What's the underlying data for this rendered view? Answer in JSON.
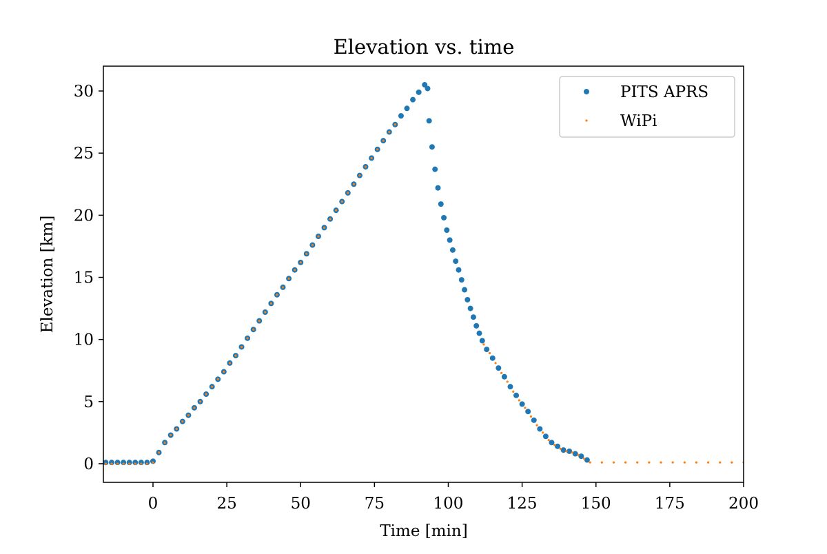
{
  "chart_data": {
    "type": "scatter",
    "title": "Elevation vs. time",
    "x_label": "Time [min]",
    "y_label": "Elevation [km]",
    "xlim": [
      -16.8,
      200
    ],
    "ylim": [
      -1.5,
      32
    ],
    "xticks": [
      0,
      25,
      50,
      75,
      100,
      125,
      150,
      175,
      200
    ],
    "yticks": [
      0,
      5,
      10,
      15,
      20,
      25,
      30
    ],
    "legend": "upper right",
    "series": [
      {
        "name": "PITS APRS",
        "color": "#1f77b4",
        "marker_size": 4,
        "x": [
          -16,
          -14,
          -12,
          -10,
          -8,
          -6,
          -4,
          -2,
          0,
          2,
          4,
          6,
          8,
          10,
          12,
          14,
          16,
          18,
          20,
          22,
          24,
          26,
          28,
          30,
          32,
          34,
          36,
          38,
          40,
          42,
          44,
          46,
          48,
          50,
          52,
          54,
          56,
          58,
          60,
          62,
          64,
          66,
          68,
          70,
          72,
          74,
          76,
          78,
          80,
          82,
          84,
          86,
          88,
          90,
          92,
          93,
          93.5,
          94.5,
          95.5,
          96.5,
          97.5,
          98.5,
          99.5,
          100.5,
          101.5,
          102.5,
          103.5,
          104.5,
          105.5,
          106.5,
          107.5,
          108.5,
          109.5,
          110.5,
          111.5,
          113,
          115,
          117,
          119,
          121,
          123,
          125,
          127,
          129,
          131,
          133,
          135,
          137,
          139,
          141,
          143,
          145,
          147
        ],
        "values": [
          0.1,
          0.1,
          0.1,
          0.1,
          0.1,
          0.1,
          0.1,
          0.1,
          0.2,
          0.9,
          1.7,
          2.3,
          2.8,
          3.4,
          3.9,
          4.5,
          5.0,
          5.6,
          6.2,
          6.8,
          7.4,
          8.1,
          8.7,
          9.4,
          10.1,
          10.8,
          11.5,
          12.2,
          12.9,
          13.6,
          14.2,
          14.9,
          15.6,
          16.2,
          16.9,
          17.6,
          18.3,
          19.0,
          19.7,
          20.4,
          21.1,
          21.8,
          22.5,
          23.2,
          23.9,
          24.6,
          25.3,
          26.0,
          26.7,
          27.3,
          28.0,
          28.6,
          29.3,
          29.9,
          30.5,
          30.2,
          27.6,
          25.5,
          23.7,
          22.2,
          20.9,
          19.8,
          18.8,
          18.0,
          17.2,
          16.3,
          15.6,
          14.8,
          14.0,
          13.2,
          12.5,
          11.8,
          11.1,
          10.5,
          9.9,
          9.2,
          8.5,
          7.7,
          7.0,
          6.2,
          5.5,
          4.8,
          4.2,
          3.5,
          2.8,
          2.2,
          1.7,
          1.4,
          1.1,
          1.0,
          0.8,
          0.6,
          0.3
        ]
      },
      {
        "name": "WiPi",
        "color": "#ff7f0e",
        "marker_size": 1.6,
        "x": [
          -16,
          -14,
          -12,
          -10,
          -8,
          -6,
          -4,
          -2,
          0,
          2,
          4,
          6,
          8,
          10,
          12,
          14,
          16,
          18,
          20,
          22,
          24,
          26,
          28,
          30,
          32,
          34,
          36,
          38,
          40,
          42,
          44,
          46,
          48,
          50,
          52,
          54,
          56,
          58,
          60,
          62,
          64,
          66,
          68,
          70,
          72,
          74,
          76,
          78,
          80,
          82,
          112,
          114,
          116,
          118,
          120,
          122,
          124,
          126,
          128,
          130,
          132,
          134,
          136,
          138,
          140,
          142,
          144,
          146,
          148,
          152,
          156,
          160,
          164,
          168,
          172,
          176,
          180,
          184,
          188,
          192,
          196,
          200
        ],
        "values": [
          0.0,
          0.0,
          0.0,
          0.0,
          0.0,
          0.0,
          0.0,
          0.0,
          0.1,
          0.9,
          1.7,
          2.3,
          2.8,
          3.4,
          3.9,
          4.5,
          5.0,
          5.6,
          6.2,
          6.8,
          7.4,
          8.1,
          8.7,
          9.4,
          10.1,
          10.8,
          11.5,
          12.2,
          12.9,
          13.6,
          14.2,
          14.9,
          15.6,
          16.2,
          16.9,
          17.6,
          18.3,
          19.0,
          19.7,
          20.4,
          21.1,
          21.8,
          22.5,
          23.2,
          23.9,
          24.6,
          25.3,
          26.0,
          26.7,
          27.3,
          9.6,
          8.9,
          8.1,
          7.3,
          6.6,
          5.8,
          5.1,
          4.5,
          3.8,
          3.1,
          2.5,
          1.9,
          1.5,
          1.2,
          1.0,
          0.9,
          0.7,
          0.4,
          0.1,
          0.1,
          0.1,
          0.1,
          0.1,
          0.1,
          0.1,
          0.1,
          0.1,
          0.1,
          0.1,
          0.1,
          0.1,
          0.1
        ]
      }
    ]
  }
}
